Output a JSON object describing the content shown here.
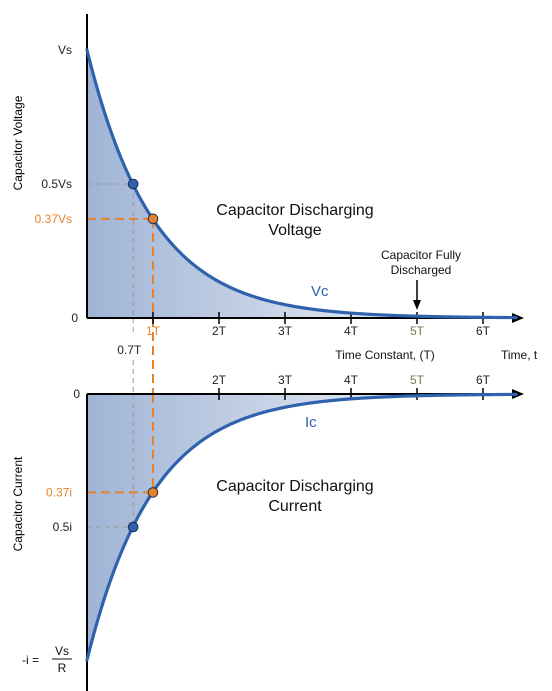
{
  "chart_data": [
    {
      "type": "line",
      "title": "Capacitor Discharging Voltage",
      "title_lines": [
        "Capacitor Discharging",
        "Voltage"
      ],
      "ylabel": "Capacitor Voltage",
      "xlabel": "Time Constant, (T)",
      "xlabel_right": "Time, t",
      "x_ticks": [
        {
          "value": 1,
          "label": "1T"
        },
        {
          "value": 2,
          "label": "2T"
        },
        {
          "value": 3,
          "label": "3T"
        },
        {
          "value": 4,
          "label": "4T"
        },
        {
          "value": 5,
          "label": "5T"
        },
        {
          "value": 6,
          "label": "6T"
        }
      ],
      "extra_x_label": {
        "value": 0.7,
        "label": "0.7T"
      },
      "y_ticks": [
        {
          "value": 1,
          "label": "Vs"
        },
        {
          "value": 0.5,
          "label": "0.5Vs"
        },
        {
          "value": 0.37,
          "label": "0.37Vs"
        },
        {
          "value": 0,
          "label": "0"
        }
      ],
      "xlim": [
        0,
        6.5
      ],
      "series": [
        {
          "name": "Vc",
          "function": "exp(-t)",
          "color": "#2e62ad"
        }
      ],
      "markers": [
        {
          "x": 0.7,
          "y": 0.5,
          "color": "#2e62ad"
        },
        {
          "x": 1,
          "y": 0.37,
          "color": "#e8822a"
        }
      ],
      "annotation": {
        "lines": [
          "Capacitor Fully",
          "Discharged"
        ],
        "x": 5
      }
    },
    {
      "type": "line",
      "title": "Capacitor Discharging Current",
      "title_lines": [
        "Capacitor Discharging",
        "Current"
      ],
      "ylabel": "Capacitor Current",
      "x_ticks": [
        {
          "value": 2,
          "label": "2T"
        },
        {
          "value": 3,
          "label": "3T"
        },
        {
          "value": 4,
          "label": "4T"
        },
        {
          "value": 5,
          "label": "5T"
        },
        {
          "value": 6,
          "label": "6T"
        }
      ],
      "y_ticks": [
        {
          "value": 0,
          "label": "0"
        },
        {
          "value": -0.37,
          "label": "0.37i"
        },
        {
          "value": -0.5,
          "label": "0.5i"
        }
      ],
      "y_min_label": {
        "prefix": "-i =",
        "numerator": "Vs",
        "denominator": "R"
      },
      "xlim": [
        0,
        6.5
      ],
      "series": [
        {
          "name": "Ic",
          "function": "-exp(-t)",
          "color": "#2e62ad"
        }
      ],
      "markers": [
        {
          "x": 0.7,
          "y": -0.5,
          "color": "#2e62ad"
        },
        {
          "x": 1,
          "y": -0.37,
          "color": "#e8822a"
        }
      ]
    }
  ],
  "colors": {
    "curve": "#2e62ad",
    "accent": "#e8822a",
    "fill_dark": "#9fb4d5",
    "fill_light": "#ffffff",
    "axis": "#000000",
    "tick_text": "#222222",
    "five_t_label": "#7a7a4a"
  }
}
